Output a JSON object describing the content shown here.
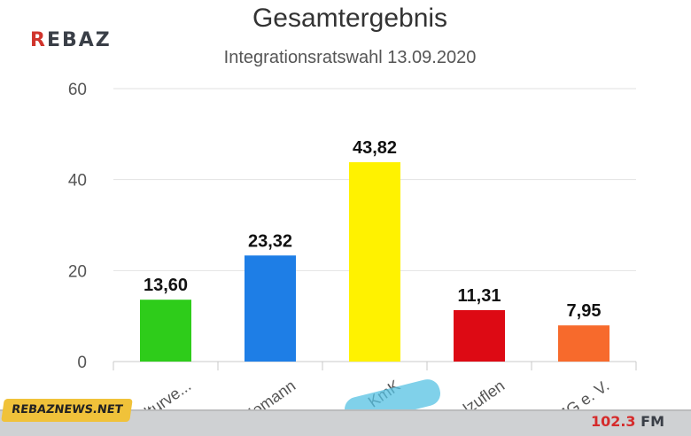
{
  "logo": {
    "first": "R",
    "rest": "EBAZ"
  },
  "site_tag": "REBAZNEWS.NET",
  "radio": {
    "freq": "102.3",
    "unit": "FM"
  },
  "chart_data": {
    "type": "bar",
    "title": "Gesamtergebnis",
    "subtitle": "Integrationsratswahl 13.09.2020",
    "categories": [
      "...ulturve...",
      "Homann",
      "KmK",
      "...Salzuflen",
      "MG e. V."
    ],
    "values": [
      13.6,
      23.32,
      43.82,
      11.31,
      7.95
    ],
    "value_labels": [
      "13,60",
      "23,32",
      "43,82",
      "11,31",
      "7,95"
    ],
    "colors": [
      "#2ecc1a",
      "#1e7ee6",
      "#fff200",
      "#dd0a14",
      "#f76a2c"
    ],
    "ylim": [
      0,
      60
    ],
    "yticks": [
      0,
      20,
      40,
      60
    ],
    "grid": true,
    "legend": "none"
  }
}
